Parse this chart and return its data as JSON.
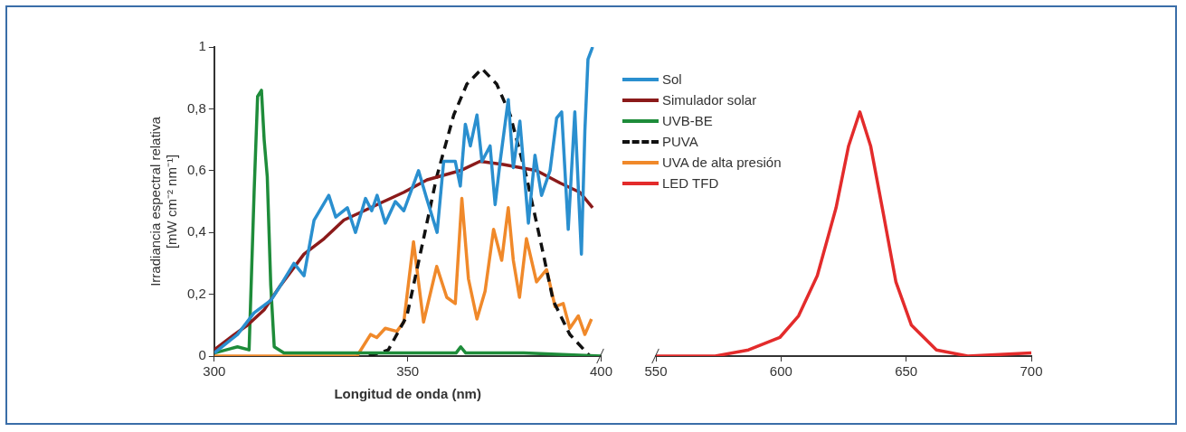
{
  "chart_data": [
    {
      "type": "line",
      "xlabel": "Longitud de onda (nm)",
      "ylabel": "Irradiancia espectral relativa\n[mW cm⁻² nm⁻¹]",
      "xlim": [
        300,
        400
      ],
      "xticks": [
        300,
        350,
        400
      ],
      "ylim": [
        0,
        1
      ],
      "yticks": [
        0,
        {
          "value": 0.2,
          "label": "0,2"
        },
        {
          "value": 0.4,
          "label": "0,4"
        },
        {
          "value": 0.6,
          "label": "0,6"
        },
        {
          "value": 0.8,
          "label": "0,8"
        },
        1
      ],
      "grid": false,
      "legend": "right",
      "marker": "none",
      "series": [
        {
          "name": "Sol",
          "color": "#2a8fcf",
          "x": [
            300,
            306,
            310.3,
            314.6,
            317.2,
            320.6,
            323.2,
            325.8,
            329.6,
            331.4,
            334.4,
            336.5,
            339.1,
            340.7,
            342.1,
            344.2,
            346.8,
            349,
            352.8,
            354.9,
            357.6,
            359.3,
            362.3,
            363.6,
            364.9,
            366.2,
            367.9,
            369.2,
            371.3,
            372.6,
            373.9,
            376,
            377.3,
            379,
            381.2,
            382.9,
            384.6,
            386.8,
            388.5,
            389.8,
            391.5,
            393.2,
            394.9,
            395.8,
            396.6,
            397.8
          ],
          "values": [
            0.01,
            0.07,
            0.14,
            0.18,
            0.23,
            0.3,
            0.26,
            0.44,
            0.52,
            0.45,
            0.48,
            0.4,
            0.51,
            0.47,
            0.52,
            0.43,
            0.5,
            0.47,
            0.6,
            0.51,
            0.4,
            0.63,
            0.63,
            0.55,
            0.75,
            0.68,
            0.78,
            0.63,
            0.68,
            0.49,
            0.63,
            0.83,
            0.61,
            0.76,
            0.43,
            0.65,
            0.52,
            0.6,
            0.77,
            0.79,
            0.41,
            0.79,
            0.33,
            0.73,
            0.96,
            1.0
          ]
        },
        {
          "name": "Simulador solar",
          "color": "#8b1a1a",
          "x": [
            300,
            305.2,
            308.6,
            312.9,
            317.2,
            323.2,
            328.4,
            333.5,
            338.7,
            343.8,
            349,
            355,
            363.6,
            368.7,
            374.7,
            383.3,
            389.4,
            394.5,
            397.8
          ],
          "values": [
            0.02,
            0.07,
            0.1,
            0.15,
            0.23,
            0.33,
            0.38,
            0.44,
            0.47,
            0.5,
            0.53,
            0.57,
            0.6,
            0.63,
            0.62,
            0.6,
            0.56,
            0.53,
            0.48
          ]
        },
        {
          "name": "UVB-BE",
          "color": "#1e8c3a",
          "x": [
            300,
            306,
            309,
            310.3,
            311.2,
            312.2,
            312.9,
            313.7,
            314.6,
            315.5,
            318,
            340,
            362.5,
            363.7,
            365,
            380,
            400
          ],
          "values": [
            0.01,
            0.03,
            0.02,
            0.53,
            0.84,
            0.86,
            0.7,
            0.58,
            0.23,
            0.03,
            0.01,
            0.01,
            0.01,
            0.03,
            0.01,
            0.01,
            0
          ]
        },
        {
          "name": "PUVA",
          "color": "#111111",
          "line_style": "dashed",
          "x": [
            340,
            345,
            349.8,
            354.1,
            357.5,
            361.9,
            365.3,
            369.2,
            373,
            376.5,
            380.7,
            384.2,
            387.6,
            391.9,
            397.1
          ],
          "values": [
            0,
            0.02,
            0.13,
            0.38,
            0.58,
            0.78,
            0.88,
            0.93,
            0.88,
            0.78,
            0.58,
            0.38,
            0.18,
            0.07,
            0
          ]
        },
        {
          "name": "UVA de alta presión",
          "color": "#f0892a",
          "x": [
            300,
            336.9,
            340.4,
            342,
            344.2,
            347.2,
            349,
            351.5,
            354.1,
            357.5,
            360.1,
            362.3,
            364,
            365.7,
            367.9,
            370,
            372.2,
            374.3,
            376,
            377.3,
            378.9,
            380.7,
            383.3,
            385.9,
            388.1,
            390.2,
            391.9,
            394.1,
            395.8,
            397.5
          ],
          "values": [
            0,
            0,
            0.07,
            0.06,
            0.09,
            0.08,
            0.11,
            0.37,
            0.11,
            0.29,
            0.19,
            0.17,
            0.51,
            0.25,
            0.12,
            0.21,
            0.41,
            0.31,
            0.48,
            0.31,
            0.19,
            0.38,
            0.24,
            0.28,
            0.16,
            0.17,
            0.09,
            0.13,
            0.07,
            0.12
          ]
        }
      ]
    },
    {
      "type": "line",
      "xlim": [
        550,
        700
      ],
      "xticks": [
        550,
        600,
        650,
        700
      ],
      "ylim": [
        0,
        1
      ],
      "tick_labels": "x",
      "grid": false,
      "legend": "left",
      "marker": "none",
      "series": [
        {
          "name": "LED TFD",
          "color": "#e32b2b",
          "x": [
            550,
            573.7,
            587,
            599.5,
            607,
            614.5,
            622,
            627,
            631.5,
            635.8,
            640.9,
            645.9,
            652.1,
            662.1,
            674.6,
            700
          ],
          "values": [
            0,
            0,
            0.02,
            0.06,
            0.13,
            0.26,
            0.48,
            0.68,
            0.79,
            0.68,
            0.46,
            0.24,
            0.1,
            0.02,
            0,
            0.01
          ]
        }
      ]
    }
  ]
}
